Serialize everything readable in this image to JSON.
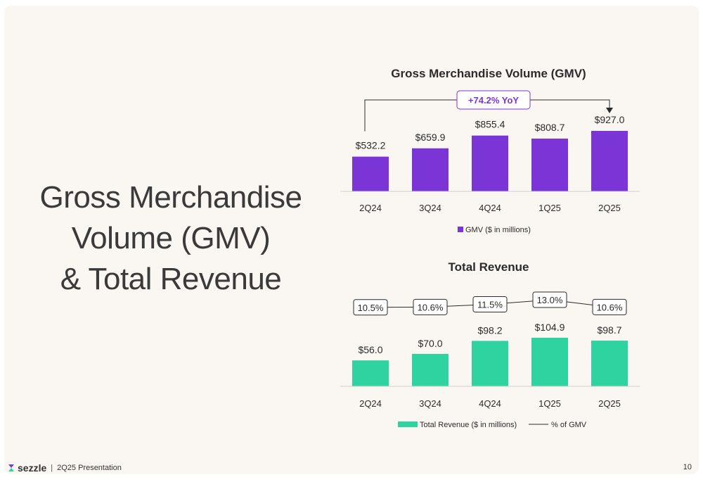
{
  "slide": {
    "headline": [
      "Gross Merchandise",
      "Volume (GMV)",
      "& Total Revenue"
    ],
    "footer": {
      "brand": "sezzle",
      "separator": "|",
      "text": "2Q25 Presentation"
    },
    "page_number": "10"
  },
  "chart_data": [
    {
      "type": "bar",
      "title": "Gross Merchandise Volume (GMV)",
      "categories": [
        "2Q24",
        "3Q24",
        "4Q24",
        "1Q25",
        "2Q25"
      ],
      "series": [
        {
          "name": "GMV ($ in millions)",
          "values": [
            532.2,
            659.9,
            855.4,
            808.7,
            927.0
          ],
          "labels": [
            "$532.2",
            "$659.9",
            "$855.4",
            "$808.7",
            "$927.0"
          ]
        }
      ],
      "annotation": {
        "text": "+74.2% YoY",
        "from": "2Q24",
        "to": "2Q25"
      },
      "legend": "bottom",
      "colors": {
        "bar": "#7b35d6",
        "annotation": "#7b35d6"
      }
    },
    {
      "type": "bar",
      "title": "Total Revenue",
      "categories": [
        "2Q24",
        "3Q24",
        "4Q24",
        "1Q25",
        "2Q25"
      ],
      "series": [
        {
          "name": "Total Revenue ($ in millions)",
          "values": [
            56.0,
            70.0,
            98.2,
            104.9,
            98.7
          ],
          "labels": [
            "$56.0",
            "$70.0",
            "$98.2",
            "$104.9",
            "$98.7"
          ]
        },
        {
          "name": "% of GMV",
          "type": "line",
          "values": [
            10.5,
            10.6,
            11.5,
            13.0,
            10.6
          ],
          "labels": [
            "10.5%",
            "10.6%",
            "11.5%",
            "13.0%",
            "10.6%"
          ]
        }
      ],
      "legend": "bottom",
      "colors": {
        "bar": "#2fd3a0",
        "line": "#2b2b2b"
      }
    }
  ]
}
